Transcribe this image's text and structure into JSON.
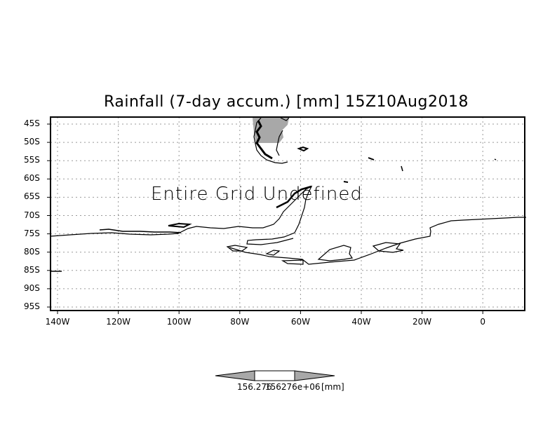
{
  "title": "Rainfall (7-day accum.) [mm] 15Z10Aug2018",
  "message": "Entire Grid Undefined",
  "lat_labels": [
    "45S",
    "50S",
    "55S",
    "60S",
    "65S",
    "70S",
    "75S",
    "80S",
    "85S",
    "90S",
    "95S"
  ],
  "lon_labels": [
    "140W",
    "120W",
    "100W",
    "80W",
    "60W",
    "40W",
    "20W",
    "0"
  ],
  "colorbar": {
    "labels": [
      "156.276",
      "156276e+06"
    ],
    "unit": "[mm]"
  },
  "colors": {
    "shade": "#a8a8a8",
    "line": "#000000"
  }
}
